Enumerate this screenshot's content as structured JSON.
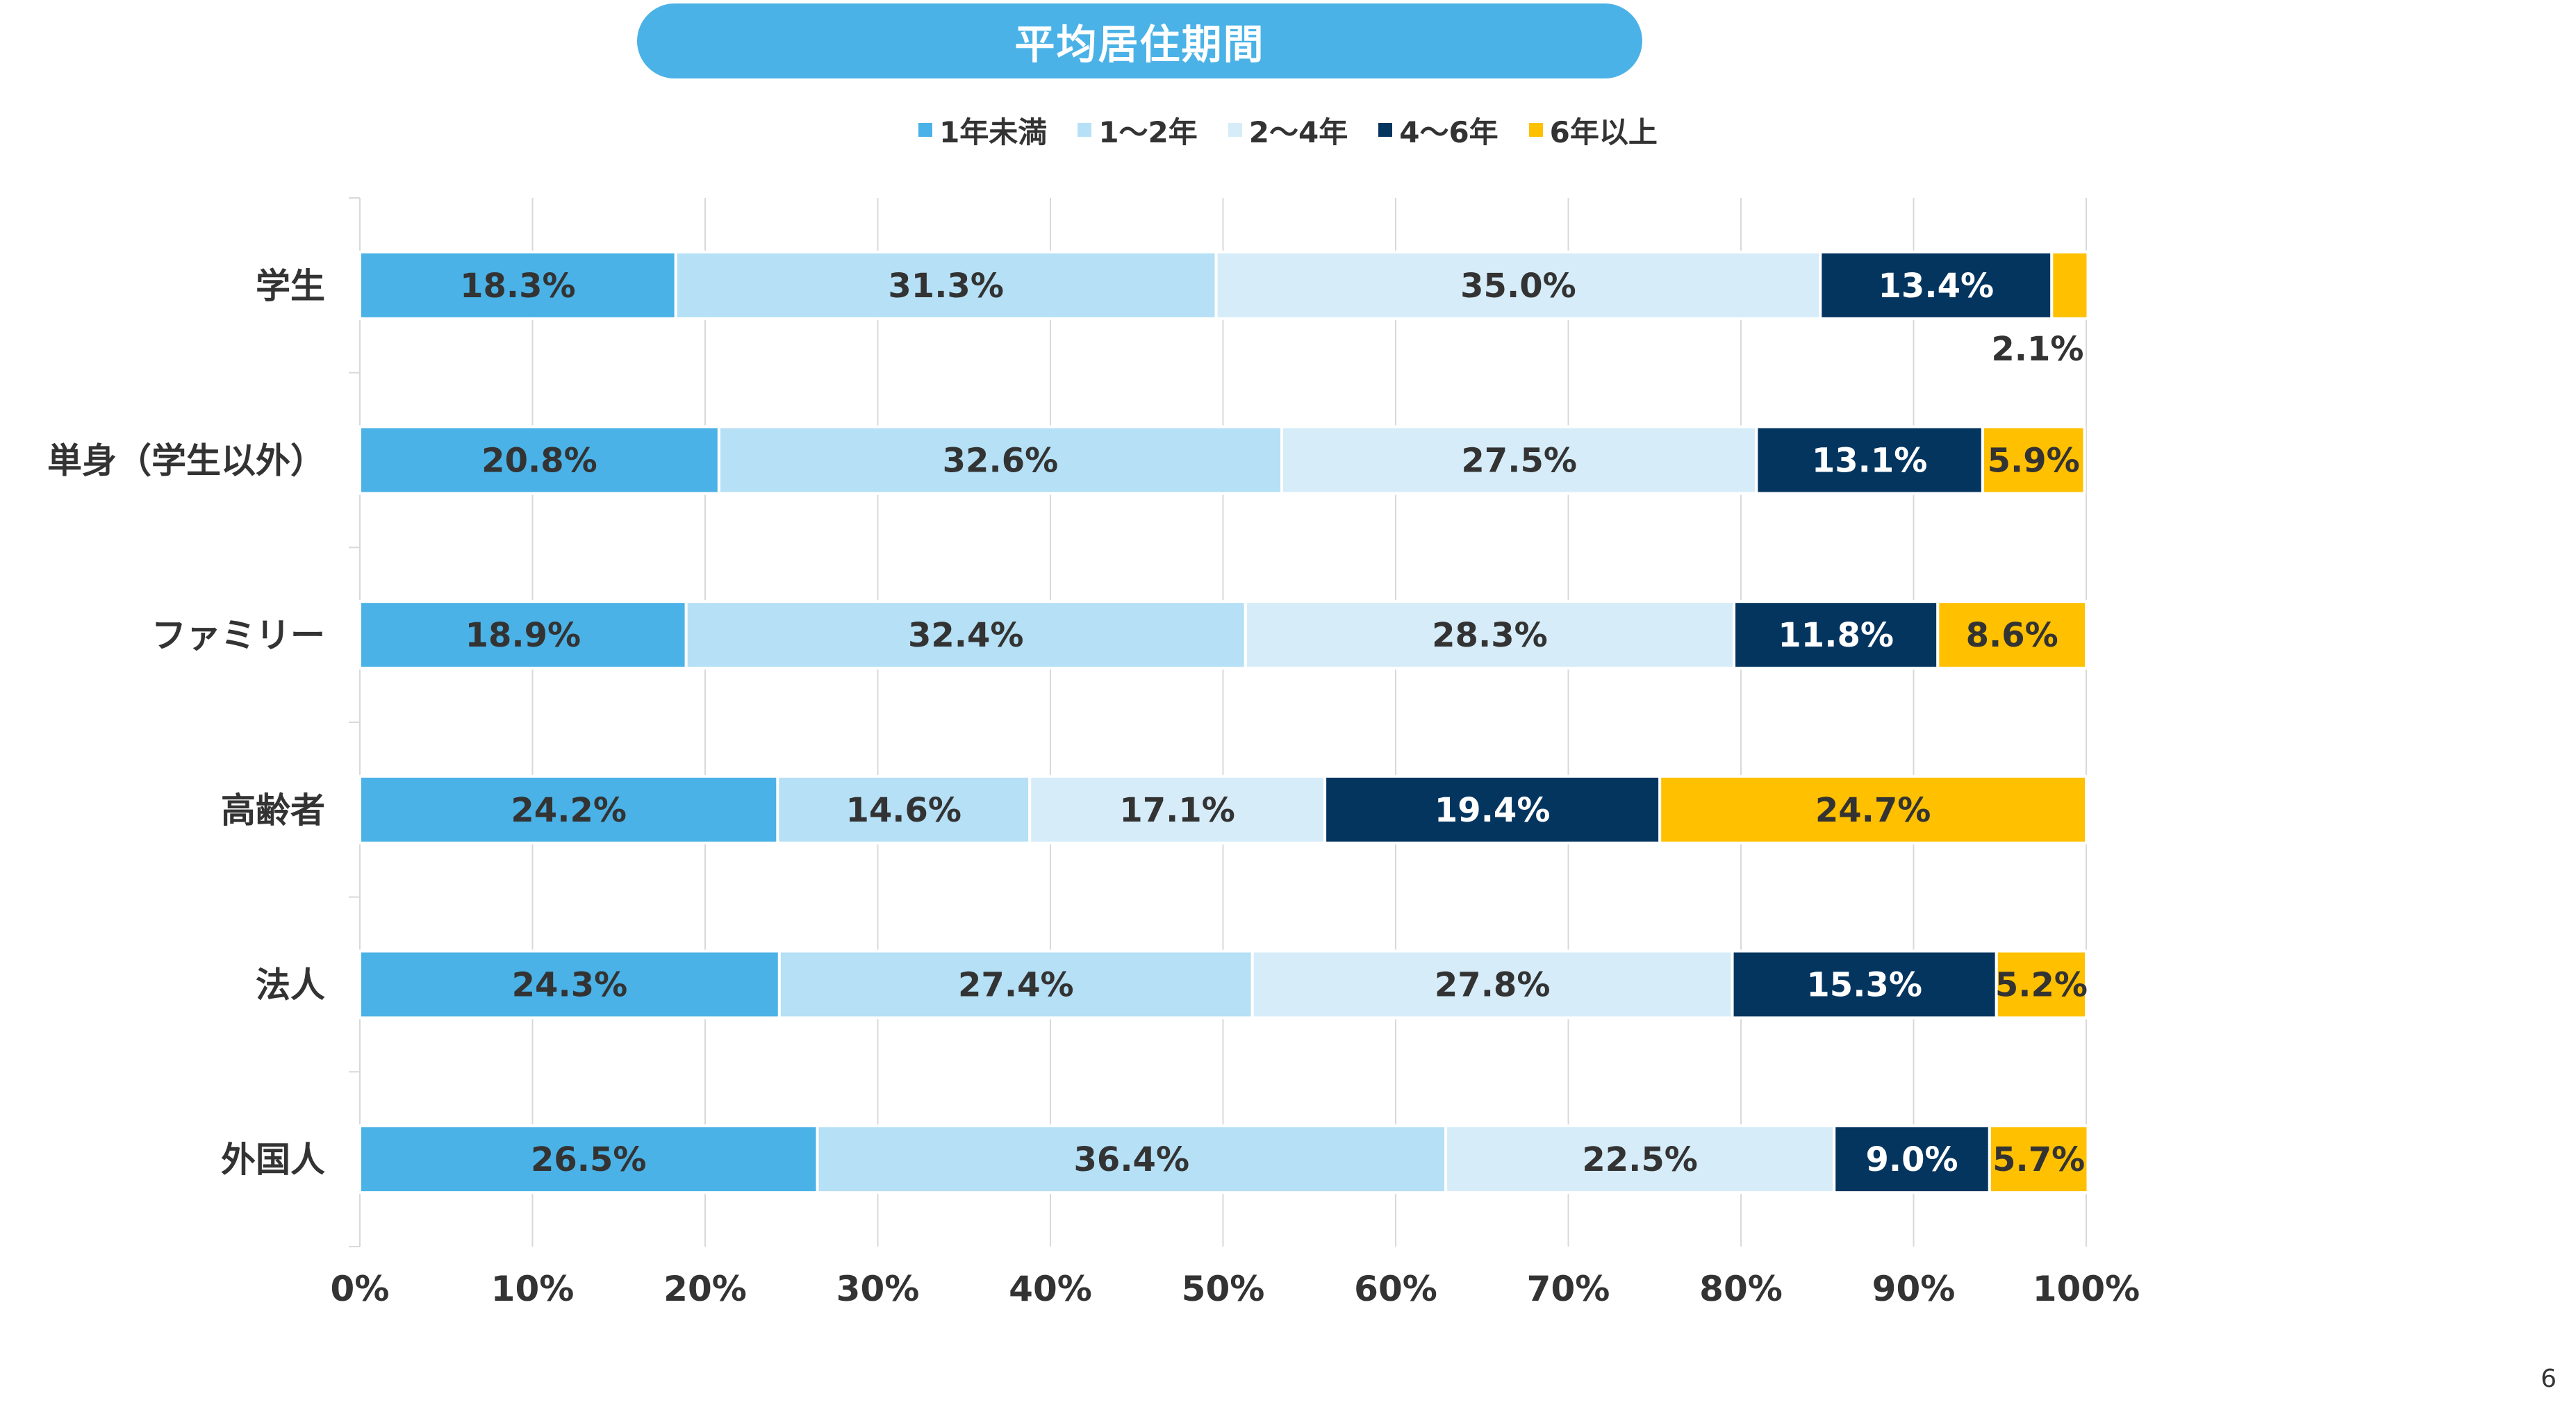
{
  "colors": {
    "1年未満": "#4AB2E6",
    "1〜2年": "#B5E0F6",
    "2〜4年": "#D6ECF9",
    "4〜6年": "#04355F",
    "6年以上": "#FFC000",
    "grid": "#D9D9D9",
    "text": "#333333"
  },
  "page_number": "6",
  "chart_data": {
    "type": "bar",
    "orientation": "horizontal",
    "stacked": true,
    "title": "平均居住期間",
    "categories": [
      "学生",
      "単身（学生以外）",
      "ファミリー",
      "高齢者",
      "法人",
      "外国人"
    ],
    "series": [
      {
        "name": "1年未満",
        "values": [
          18.3,
          20.8,
          18.9,
          24.2,
          24.3,
          26.5
        ],
        "labels": [
          "18.3%",
          "20.8%",
          "18.9%",
          "24.2%",
          "24.3%",
          "26.5%"
        ]
      },
      {
        "name": "1〜2年",
        "values": [
          31.3,
          32.6,
          32.4,
          14.6,
          27.4,
          36.4
        ],
        "labels": [
          "31.3%",
          "32.6%",
          "32.4%",
          "14.6%",
          "27.4%",
          "36.4%"
        ]
      },
      {
        "name": "2〜4年",
        "values": [
          35.0,
          27.5,
          28.3,
          17.1,
          27.8,
          22.5
        ],
        "labels": [
          "35.0%",
          "27.5%",
          "28.3%",
          "17.1%",
          "27.8%",
          "22.5%"
        ]
      },
      {
        "name": "4〜6年",
        "values": [
          13.4,
          13.1,
          11.8,
          19.4,
          15.3,
          9.0
        ],
        "labels": [
          "13.4%",
          "13.1%",
          "11.8%",
          "19.4%",
          "15.3%",
          "9.0%"
        ]
      },
      {
        "name": "6年以上",
        "values": [
          2.1,
          5.9,
          8.6,
          24.7,
          5.2,
          5.7
        ],
        "labels": [
          "2.1%",
          "5.9%",
          "8.6%",
          "24.7%",
          "5.2%",
          "5.7%"
        ]
      }
    ],
    "xlim": [
      0,
      100
    ],
    "xticks": [
      "0%",
      "10%",
      "20%",
      "30%",
      "40%",
      "50%",
      "60%",
      "70%",
      "80%",
      "90%",
      "100%"
    ],
    "grid": true,
    "legend": "top"
  }
}
